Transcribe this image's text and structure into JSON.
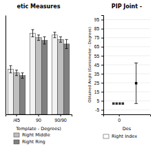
{
  "chart_data": [
    {
      "type": "bar",
      "title": "etic Measures",
      "x_label": "Template - Degrees)",
      "categories": [
        "/45",
        "90",
        "90/90"
      ],
      "series": [
        {
          "color": "#f2f2f2",
          "values": [
            50,
            90,
            88
          ],
          "errors": [
            4,
            4,
            3
          ]
        },
        {
          "name": "Right Middle",
          "color": "#bfbfbf",
          "values": [
            46,
            85,
            83
          ],
          "errors": [
            3,
            3,
            3
          ]
        },
        {
          "name": "Right Ring",
          "color": "#808080",
          "values": [
            43,
            82,
            78
          ],
          "errors": [
            3,
            4,
            5
          ]
        }
      ],
      "ylim": [
        0,
        110
      ],
      "yticks": [],
      "grid": false,
      "tick_labels": "x",
      "legend": "bottom"
    },
    {
      "type": "scatter",
      "title": "PIP Joint -",
      "x_label": "Des",
      "y_label": "Obtained Angle (Goniometer - Degrees)",
      "series": [
        {
          "type": "scatter",
          "color": "#333333",
          "marker": "square",
          "x": [
            -0.35,
            -0.15,
            0.05,
            0.25
          ],
          "values": [
            2,
            2,
            2,
            2
          ]
        },
        {
          "type": "errorbar",
          "color": "#000000",
          "marker": "square",
          "x": [
            1.1
          ],
          "values": [
            24.5
          ],
          "errors": [
            22.5
          ]
        }
      ],
      "xlim": [
        -1.0,
        2.0
      ],
      "xticks": [
        0
      ],
      "ylim": [
        -10,
        100
      ],
      "yticks": [
        95,
        85,
        75,
        65,
        55,
        45,
        35,
        25,
        15,
        5,
        -5
      ],
      "grid": true,
      "annotations": [
        {
          "text": "Right Index",
          "color": "#ffffff"
        }
      ]
    }
  ]
}
